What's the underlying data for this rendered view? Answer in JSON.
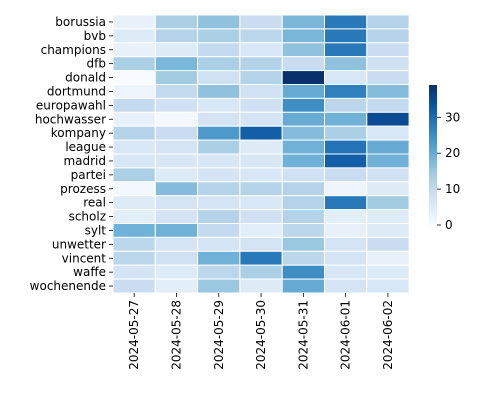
{
  "chart_data": {
    "type": "heatmap",
    "rows": [
      "borussia",
      "bvb",
      "champions",
      "dfb",
      "donald",
      "dortmund",
      "europawahl",
      "hochwasser",
      "kompany",
      "league",
      "madrid",
      "partei",
      "prozess",
      "real",
      "scholz",
      "sylt",
      "unwetter",
      "vincent",
      "waffe",
      "wochenende"
    ],
    "columns": [
      "2024-05-27",
      "2024-05-28",
      "2024-05-29",
      "2024-05-30",
      "2024-05-31",
      "2024-06-01",
      "2024-06-02"
    ],
    "values": [
      [
        3,
        13,
        16,
        9,
        18,
        28,
        12
      ],
      [
        5,
        12,
        13,
        11,
        18,
        28,
        12
      ],
      [
        3,
        5,
        10,
        6,
        16,
        28,
        9
      ],
      [
        13,
        18,
        13,
        12,
        9,
        16,
        8
      ],
      [
        0,
        14,
        8,
        12,
        39,
        6,
        9
      ],
      [
        2,
        10,
        16,
        8,
        20,
        27,
        17
      ],
      [
        10,
        8,
        6,
        8,
        25,
        11,
        10
      ],
      [
        3,
        1,
        7,
        7,
        20,
        19,
        35
      ],
      [
        12,
        9,
        23,
        32,
        17,
        13,
        6
      ],
      [
        6,
        7,
        13,
        5,
        19,
        29,
        20
      ],
      [
        6,
        6,
        6,
        6,
        19,
        32,
        19
      ],
      [
        13,
        5,
        7,
        6,
        8,
        9,
        8
      ],
      [
        1,
        17,
        12,
        12,
        12,
        2,
        5
      ],
      [
        5,
        7,
        7,
        6,
        12,
        28,
        14
      ],
      [
        4,
        7,
        12,
        8,
        12,
        4,
        5
      ],
      [
        19,
        19,
        10,
        4,
        11,
        3,
        5
      ],
      [
        11,
        7,
        7,
        7,
        15,
        7,
        9
      ],
      [
        11,
        8,
        19,
        28,
        11,
        7,
        3
      ],
      [
        7,
        5,
        11,
        13,
        25,
        6,
        5
      ],
      [
        9,
        4,
        15,
        5,
        20,
        7,
        6
      ]
    ],
    "colorbar": {
      "min": 0,
      "max": 39,
      "ticks": [
        0,
        10,
        20,
        30
      ]
    },
    "colormap": [
      "#f7fbff",
      "#deebf7",
      "#c6dbef",
      "#9ecae1",
      "#6baed6",
      "#4292c6",
      "#2171b5",
      "#08519c",
      "#08306b"
    ],
    "title": "",
    "xlabel": "",
    "ylabel": ""
  }
}
